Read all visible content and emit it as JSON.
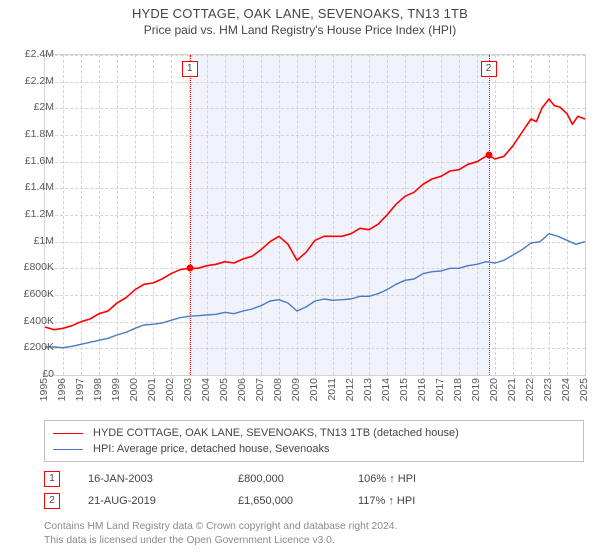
{
  "header": {
    "title": "HYDE COTTAGE, OAK LANE, SEVENOAKS, TN13 1TB",
    "subtitle": "Price paid vs. HM Land Registry's House Price Index (HPI)"
  },
  "chart": {
    "type": "line",
    "background_color": "#ffffff",
    "plot_border_color": "#d3d3d3",
    "grid_color": "#d3d3d3",
    "band": {
      "visible": true,
      "color": "#f0f2fc",
      "x_start": 2003.04,
      "x_end": 2019.64
    },
    "x": {
      "min": 1995,
      "max": 2025,
      "ticks": [
        1995,
        1996,
        1997,
        1998,
        1999,
        2000,
        2001,
        2002,
        2003,
        2004,
        2005,
        2006,
        2007,
        2008,
        2009,
        2010,
        2011,
        2012,
        2013,
        2014,
        2015,
        2016,
        2017,
        2018,
        2019,
        2020,
        2021,
        2022,
        2023,
        2024,
        2025
      ]
    },
    "y": {
      "min": 0,
      "max": 2400000,
      "ticks": [
        0,
        200000,
        400000,
        600000,
        800000,
        1000000,
        1200000,
        1400000,
        1600000,
        1800000,
        2000000,
        2200000,
        2400000
      ],
      "labels": [
        "£0",
        "£200K",
        "£400K",
        "£600K",
        "£800K",
        "£1M",
        "£1.2M",
        "£1.4M",
        "£1.6M",
        "£1.8M",
        "£2M",
        "£2.2M",
        "£2.4M"
      ]
    },
    "series": [
      {
        "id": "subject",
        "label": "HYDE COTTAGE, OAK LANE, SEVENOAKS, TN13 1TB (detached house)",
        "color": "#ff0000",
        "line_width": 1.6,
        "points": [
          [
            1995.0,
            360000
          ],
          [
            1995.5,
            340000
          ],
          [
            1996.0,
            350000
          ],
          [
            1996.5,
            370000
          ],
          [
            1997.0,
            400000
          ],
          [
            1997.5,
            420000
          ],
          [
            1998.0,
            460000
          ],
          [
            1998.5,
            480000
          ],
          [
            1999.0,
            540000
          ],
          [
            1999.5,
            580000
          ],
          [
            2000.0,
            640000
          ],
          [
            2000.5,
            680000
          ],
          [
            2001.0,
            690000
          ],
          [
            2001.5,
            720000
          ],
          [
            2002.0,
            760000
          ],
          [
            2002.5,
            790000
          ],
          [
            2003.0,
            800000
          ],
          [
            2003.5,
            800000
          ],
          [
            2004.0,
            820000
          ],
          [
            2004.5,
            830000
          ],
          [
            2005.0,
            850000
          ],
          [
            2005.5,
            840000
          ],
          [
            2006.0,
            870000
          ],
          [
            2006.5,
            890000
          ],
          [
            2007.0,
            940000
          ],
          [
            2007.5,
            1000000
          ],
          [
            2008.0,
            1040000
          ],
          [
            2008.5,
            980000
          ],
          [
            2009.0,
            860000
          ],
          [
            2009.5,
            920000
          ],
          [
            2010.0,
            1010000
          ],
          [
            2010.5,
            1040000
          ],
          [
            2011.0,
            1040000
          ],
          [
            2011.5,
            1040000
          ],
          [
            2012.0,
            1060000
          ],
          [
            2012.5,
            1100000
          ],
          [
            2013.0,
            1090000
          ],
          [
            2013.5,
            1130000
          ],
          [
            2014.0,
            1200000
          ],
          [
            2014.5,
            1280000
          ],
          [
            2015.0,
            1340000
          ],
          [
            2015.5,
            1370000
          ],
          [
            2016.0,
            1430000
          ],
          [
            2016.5,
            1470000
          ],
          [
            2017.0,
            1490000
          ],
          [
            2017.5,
            1530000
          ],
          [
            2018.0,
            1540000
          ],
          [
            2018.5,
            1580000
          ],
          [
            2019.0,
            1600000
          ],
          [
            2019.5,
            1640000
          ],
          [
            2019.64,
            1650000
          ],
          [
            2020.0,
            1620000
          ],
          [
            2020.5,
            1640000
          ],
          [
            2021.0,
            1720000
          ],
          [
            2021.5,
            1820000
          ],
          [
            2022.0,
            1920000
          ],
          [
            2022.3,
            1900000
          ],
          [
            2022.6,
            2000000
          ],
          [
            2023.0,
            2070000
          ],
          [
            2023.3,
            2020000
          ],
          [
            2023.6,
            2010000
          ],
          [
            2024.0,
            1960000
          ],
          [
            2024.3,
            1880000
          ],
          [
            2024.6,
            1940000
          ],
          [
            2025.0,
            1920000
          ]
        ]
      },
      {
        "id": "hpi",
        "label": "HPI: Average price, detached house, Sevenoaks",
        "color": "#4a7cc4",
        "line_width": 1.4,
        "points": [
          [
            1995.0,
            210000
          ],
          [
            1995.5,
            210000
          ],
          [
            1996.0,
            205000
          ],
          [
            1996.5,
            215000
          ],
          [
            1997.0,
            230000
          ],
          [
            1997.5,
            245000
          ],
          [
            1998.0,
            260000
          ],
          [
            1998.5,
            275000
          ],
          [
            1999.0,
            300000
          ],
          [
            1999.5,
            320000
          ],
          [
            2000.0,
            350000
          ],
          [
            2000.5,
            375000
          ],
          [
            2001.0,
            380000
          ],
          [
            2001.5,
            390000
          ],
          [
            2002.0,
            410000
          ],
          [
            2002.5,
            430000
          ],
          [
            2003.0,
            440000
          ],
          [
            2003.5,
            445000
          ],
          [
            2004.0,
            450000
          ],
          [
            2004.5,
            455000
          ],
          [
            2005.0,
            470000
          ],
          [
            2005.5,
            460000
          ],
          [
            2006.0,
            480000
          ],
          [
            2006.5,
            495000
          ],
          [
            2007.0,
            520000
          ],
          [
            2007.5,
            555000
          ],
          [
            2008.0,
            565000
          ],
          [
            2008.5,
            540000
          ],
          [
            2009.0,
            480000
          ],
          [
            2009.5,
            510000
          ],
          [
            2010.0,
            555000
          ],
          [
            2010.5,
            570000
          ],
          [
            2011.0,
            560000
          ],
          [
            2011.5,
            565000
          ],
          [
            2012.0,
            570000
          ],
          [
            2012.5,
            590000
          ],
          [
            2013.0,
            590000
          ],
          [
            2013.5,
            610000
          ],
          [
            2014.0,
            640000
          ],
          [
            2014.5,
            680000
          ],
          [
            2015.0,
            710000
          ],
          [
            2015.5,
            720000
          ],
          [
            2016.0,
            760000
          ],
          [
            2016.5,
            775000
          ],
          [
            2017.0,
            780000
          ],
          [
            2017.5,
            800000
          ],
          [
            2018.0,
            800000
          ],
          [
            2018.5,
            820000
          ],
          [
            2019.0,
            830000
          ],
          [
            2019.5,
            850000
          ],
          [
            2020.0,
            840000
          ],
          [
            2020.5,
            860000
          ],
          [
            2021.0,
            900000
          ],
          [
            2021.5,
            940000
          ],
          [
            2022.0,
            990000
          ],
          [
            2022.5,
            1000000
          ],
          [
            2023.0,
            1060000
          ],
          [
            2023.5,
            1040000
          ],
          [
            2024.0,
            1010000
          ],
          [
            2024.5,
            980000
          ],
          [
            2025.0,
            1000000
          ]
        ]
      }
    ],
    "markers": [
      {
        "n": "1",
        "x": 2003.04,
        "y": 800000
      },
      {
        "n": "2",
        "x": 2019.64,
        "y": 1650000
      }
    ]
  },
  "legend": {
    "items": [
      {
        "color": "#ff0000",
        "label": "HYDE COTTAGE, OAK LANE, SEVENOAKS, TN13 1TB (detached house)"
      },
      {
        "color": "#4a7cc4",
        "label": "HPI: Average price, detached house, Sevenoaks"
      }
    ]
  },
  "sales": [
    {
      "n": "1",
      "date": "16-JAN-2003",
      "price": "£800,000",
      "ratio": "106% ↑ HPI"
    },
    {
      "n": "2",
      "date": "21-AUG-2019",
      "price": "£1,650,000",
      "ratio": "117% ↑ HPI"
    }
  ],
  "footer": {
    "line1": "Contains HM Land Registry data © Crown copyright and database right 2024.",
    "line2": "This data is licensed under the Open Government Licence v3.0."
  }
}
